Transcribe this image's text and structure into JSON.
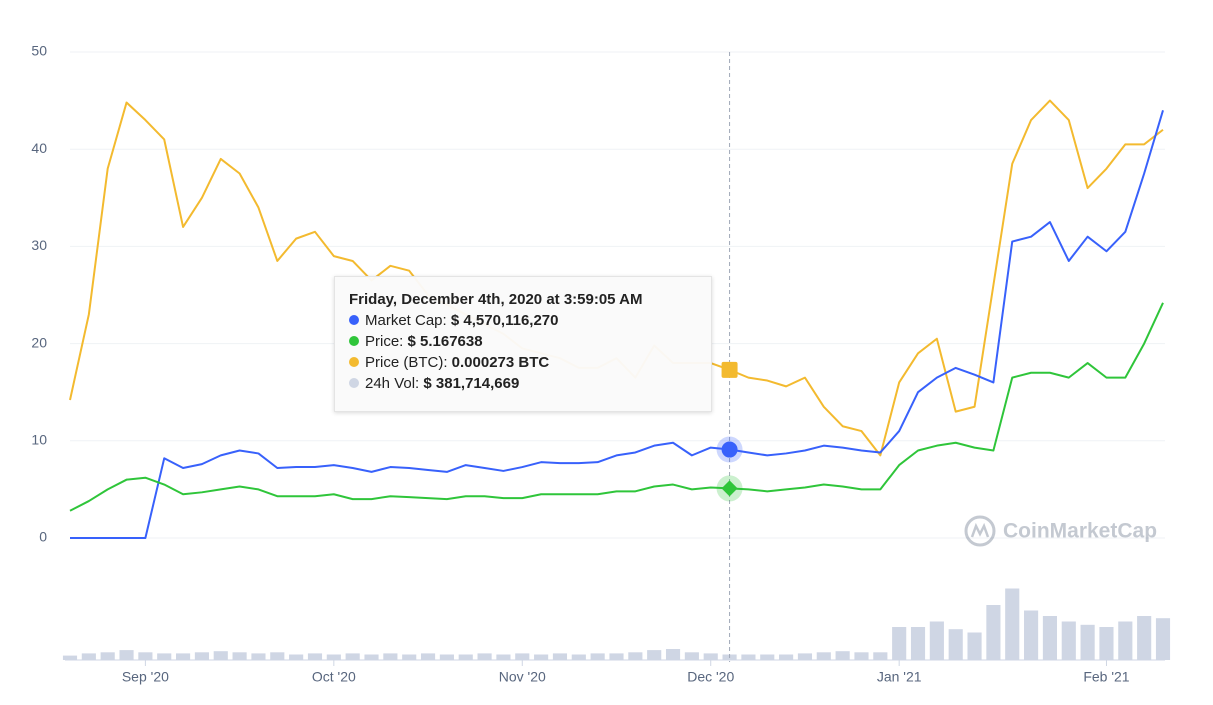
{
  "chart_data": {
    "type": "line",
    "categories": [
      null,
      null,
      null,
      null,
      "Sep '20",
      null,
      null,
      null,
      null,
      null,
      null,
      null,
      null,
      null,
      "Oct '20",
      null,
      null,
      null,
      null,
      null,
      null,
      null,
      null,
      null,
      "Nov '20",
      null,
      null,
      null,
      null,
      null,
      null,
      null,
      null,
      null,
      "Dec '20",
      null,
      null,
      null,
      null,
      null,
      null,
      null,
      null,
      null,
      "Jan '21",
      null,
      null,
      null,
      null,
      null,
      null,
      null,
      null,
      null,
      null,
      "Feb '21",
      null,
      null,
      null
    ],
    "series": [
      {
        "name": "Market Cap",
        "color": "#3861fb",
        "values": [
          0,
          0,
          0,
          0,
          0,
          8.2,
          7.2,
          7.6,
          8.5,
          9,
          8.7,
          7.2,
          7.3,
          7.3,
          7.5,
          7.2,
          6.8,
          7.3,
          7.2,
          7.0,
          6.8,
          7.5,
          7.2,
          6.9,
          7.3,
          7.8,
          7.7,
          7.7,
          7.8,
          8.5,
          8.8,
          9.5,
          9.8,
          8.5,
          9.3,
          9.1,
          8.8,
          8.5,
          8.7,
          9.0,
          9.5,
          9.3,
          9.0,
          8.8,
          11,
          15,
          16.5,
          17.5,
          16.8,
          16,
          30.5,
          31,
          32.5,
          28.5,
          31,
          29.5,
          31.5,
          37.5,
          44
        ]
      },
      {
        "name": "Price",
        "color": "#2fc53a",
        "values": [
          2.8,
          3.8,
          5.0,
          6.0,
          6.2,
          5.5,
          4.5,
          4.7,
          5.0,
          5.3,
          5.0,
          4.3,
          4.3,
          4.3,
          4.5,
          4.0,
          4.0,
          4.3,
          4.2,
          4.1,
          4.0,
          4.3,
          4.3,
          4.1,
          4.1,
          4.5,
          4.5,
          4.5,
          4.5,
          4.8,
          4.8,
          5.3,
          5.5,
          5.0,
          5.2,
          5.1,
          5.0,
          4.8,
          5.0,
          5.2,
          5.5,
          5.3,
          5.0,
          5.0,
          7.5,
          9.0,
          9.5,
          9.8,
          9.3,
          9.0,
          16.5,
          17,
          17,
          16.5,
          18,
          16.5,
          16.5,
          20,
          24.2
        ]
      },
      {
        "name": "Price (BTC)",
        "color": "#f3ba2f",
        "values": [
          14.2,
          23,
          38,
          44.8,
          43,
          41,
          32,
          35,
          39,
          37.5,
          34,
          28.5,
          30.8,
          31.5,
          29,
          28.5,
          26.5,
          28,
          27.5,
          25,
          24,
          23,
          22,
          21,
          19.5,
          19,
          18.5,
          17.5,
          17.5,
          18.5,
          16.5,
          19.8,
          18,
          18,
          18,
          17.3,
          16.5,
          16.2,
          15.6,
          16.5,
          13.5,
          11.5,
          11.0,
          8.5,
          16,
          19,
          20.5,
          13,
          13.5,
          26,
          38.5,
          43,
          45.0,
          43,
          36,
          38,
          40.5,
          40.5,
          42
        ]
      }
    ],
    "volume": {
      "name": "24h Vol",
      "color": "#cfd6e4",
      "values": [
        4,
        6,
        7,
        9,
        7,
        6,
        6,
        7,
        8,
        7,
        6,
        7,
        5,
        6,
        5,
        6,
        5,
        6,
        5,
        6,
        5,
        5,
        6,
        5,
        6,
        5,
        6,
        5,
        6,
        6,
        7,
        9,
        10,
        7,
        6,
        5,
        5,
        5,
        5,
        6,
        7,
        8,
        7,
        7,
        30,
        30,
        35,
        28,
        25,
        50,
        65,
        45,
        40,
        35,
        32,
        30,
        35,
        40,
        38
      ],
      "lim": [
        0,
        100
      ]
    },
    "ylim": [
      0,
      50
    ],
    "yticks": [
      0,
      10,
      20,
      30,
      40,
      50
    ],
    "grid": true,
    "hover_index": 35,
    "tooltip": {
      "title": "Friday, December 4th, 2020 at 3:59:05 AM",
      "rows": [
        {
          "label": "Market Cap:",
          "value": "$ 4,570,116,270",
          "color": "#3861fb"
        },
        {
          "label": "Price:",
          "value": "$ 5.167638",
          "color": "#2fc53a"
        },
        {
          "label": "Price (BTC):",
          "value": "0.000273 BTC",
          "color": "#f3ba2f"
        },
        {
          "label": "24h Vol:",
          "value": "$ 381,714,669",
          "color": "#cfd6e4"
        }
      ]
    },
    "watermark": "CoinMarketCap"
  }
}
